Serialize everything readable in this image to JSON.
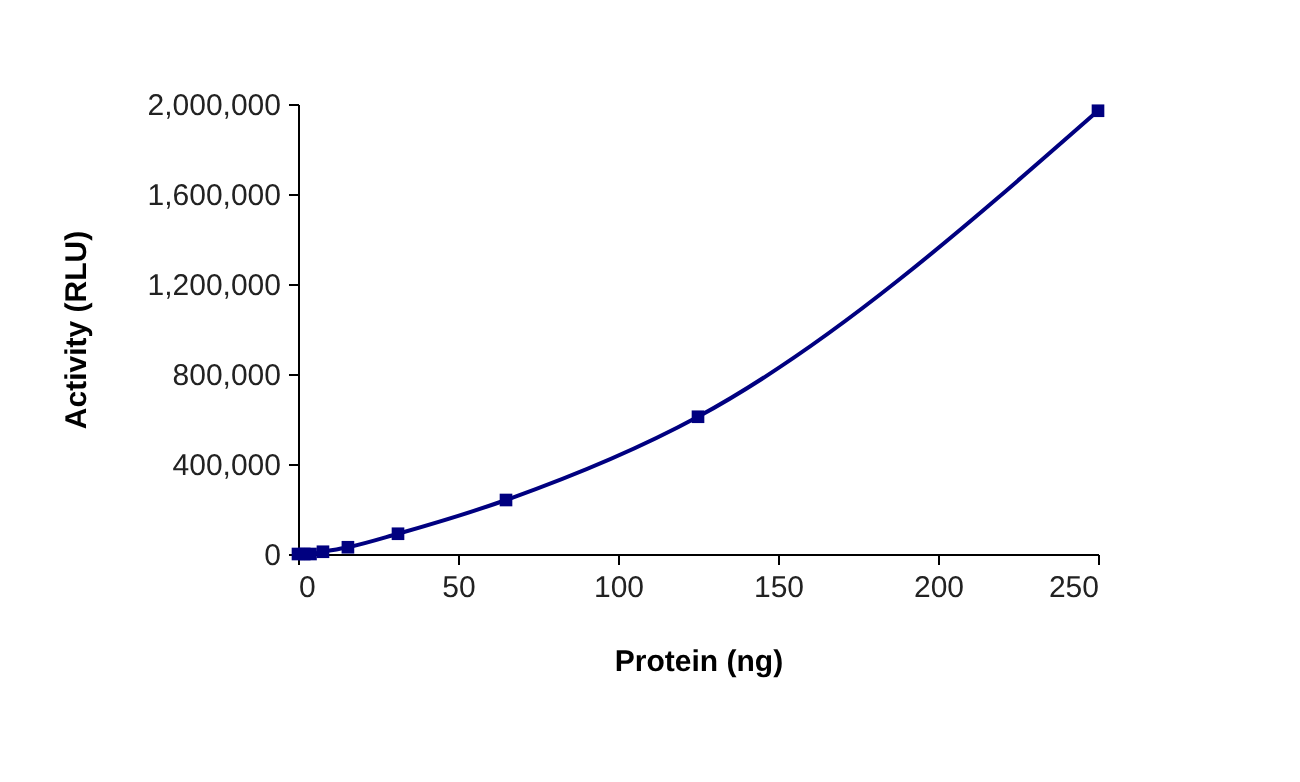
{
  "chart_data": {
    "type": "line",
    "xlabel": "Protein (ng)",
    "ylabel": "Activity (RLU)",
    "x": [
      0,
      1.95,
      3.9,
      7.8,
      15.6,
      31.25,
      65,
      125,
      250
    ],
    "series": [
      {
        "color": "#000080",
        "values": [
          0,
          0,
          0,
          10000,
          30000,
          90000,
          240000,
          610000,
          1970000
        ]
      }
    ],
    "xlim": [
      0,
      250
    ],
    "xticks": [
      0,
      50,
      100,
      150,
      200,
      250
    ],
    "ylim": [
      0,
      2000000
    ],
    "yticks": [
      {
        "value": 0,
        "label": "0"
      },
      {
        "value": 400000,
        "label": "400,000"
      },
      {
        "value": 800000,
        "label": "800,000"
      },
      {
        "value": 1200000,
        "label": "1,200,000"
      },
      {
        "value": 1600000,
        "label": "1,600,000"
      },
      {
        "value": 2000000,
        "label": "2,000,000"
      }
    ],
    "marker": "square",
    "line_style": "solid",
    "grid": false
  }
}
